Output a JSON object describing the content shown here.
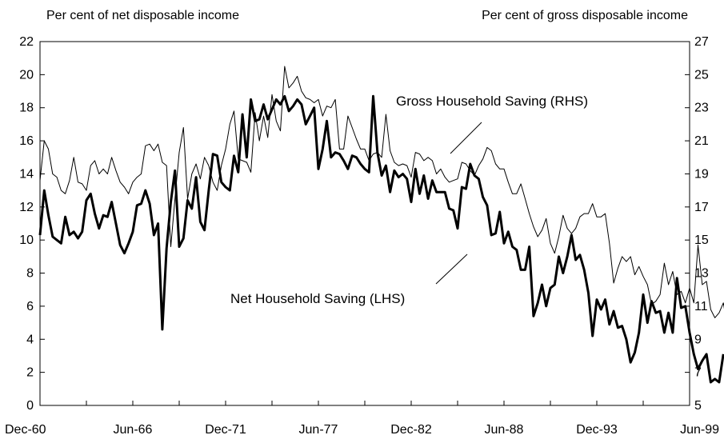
{
  "chart_data": {
    "type": "line",
    "title": "",
    "left_axis": {
      "label": "Per cent of net disposable income",
      "ylim": [
        0,
        22
      ],
      "ticks": [
        0,
        2,
        4,
        6,
        8,
        10,
        12,
        14,
        16,
        18,
        20,
        22
      ]
    },
    "right_axis": {
      "label": "Per cent of gross disposable income",
      "ylim": [
        5,
        27
      ],
      "ticks": [
        5,
        7,
        9,
        11,
        13,
        15,
        17,
        19,
        21,
        23,
        25,
        27
      ]
    },
    "x_axis": {
      "start": 1960.917,
      "end": 1999.417,
      "tick_labels": [
        "Dec-60",
        "Jun-66",
        "Dec-71",
        "Jun-77",
        "Dec-82",
        "Jun-88",
        "Dec-93",
        "Jun-99"
      ],
      "tick_positions": [
        1960.917,
        1966.417,
        1971.917,
        1977.417,
        1982.917,
        1988.417,
        1993.917,
        1999.417
      ]
    },
    "grid": false,
    "annotations": {
      "gross": "Gross Household Saving (RHS)",
      "net": "Net Household Saving (LHS)"
    },
    "series": [
      {
        "key": "gross",
        "axis": "right",
        "stroke_width": 1,
        "color": "#000000",
        "x_start": 1960.917,
        "x_step": 0.25,
        "values": [
          18.6,
          21,
          20.5,
          19,
          18.8,
          18,
          17.8,
          18.6,
          20,
          18.5,
          18.4,
          18,
          19.5,
          19.8,
          19,
          19.3,
          19,
          20,
          19.2,
          18.5,
          18.2,
          17.8,
          18.5,
          18.8,
          19,
          20.7,
          20.8,
          20.4,
          20.8,
          19.7,
          19.5,
          14.6,
          17.5,
          20.3,
          21.8,
          17.5,
          19,
          19.6,
          18.7,
          20,
          19.5,
          18.5,
          18,
          19.5,
          20.5,
          22,
          22.8,
          19.9,
          19.8,
          19.7,
          19.1,
          22.7,
          21,
          22.5,
          21.2,
          23.8,
          22.2,
          21.6,
          25.5,
          24.2,
          24.5,
          24.9,
          24,
          23.6,
          23.5,
          23.3,
          23.5,
          22.5,
          23.1,
          23,
          23.5,
          20.5,
          20.5,
          22.5,
          21.8,
          21.1,
          20.5,
          20.5,
          19.8,
          20.2,
          20.3,
          20,
          22.6,
          20.4,
          19.7,
          19.5,
          19.6,
          19.5,
          18.8,
          20.3,
          20.2,
          19.8,
          20,
          19.8,
          19,
          19.3,
          18.8,
          18.5,
          18.6,
          18.7,
          19.7,
          19.6,
          19.2,
          18.9,
          19.5,
          19.9,
          20.6,
          20.4,
          19.6,
          19.3,
          19.3,
          18.5,
          17.8,
          17.8,
          18.4,
          17.5,
          16.6,
          15.8,
          15.2,
          15.6,
          16.3,
          14.8,
          14.2,
          15.2,
          16.5,
          15.7,
          15.4,
          15.7,
          16.4,
          16.6,
          16.6,
          17.2,
          16.4,
          16.4,
          16.6,
          14.8,
          12.4,
          13.3,
          14,
          13.7,
          14,
          12.9,
          13.4,
          12.8,
          12.3,
          11.1,
          11.3,
          11.7,
          13.6,
          12.3,
          13.1,
          11.7,
          11.9,
          11.2,
          12.1,
          11.2,
          14.7,
          12.3,
          12.5,
          10.8,
          10.3,
          10.6,
          11.2,
          9.7,
          9.8,
          9.6,
          10.8
        ]
      },
      {
        "key": "net",
        "axis": "left",
        "stroke_width": 3,
        "color": "#000000",
        "x_start": 1960.917,
        "x_step": 0.25,
        "values": [
          10.3,
          13,
          11.5,
          10.2,
          10,
          9.8,
          11.4,
          10.3,
          10.5,
          10.1,
          10.5,
          12.4,
          12.8,
          11.6,
          10.7,
          11.5,
          11.4,
          12.3,
          11,
          9.7,
          9.2,
          9.8,
          10.5,
          12.1,
          12.2,
          13,
          12.2,
          10.3,
          11,
          4.6,
          9.5,
          12.3,
          14.2,
          9.6,
          10.1,
          12.4,
          11.9,
          13.8,
          11.1,
          10.6,
          13,
          15.2,
          15.1,
          13.5,
          13.2,
          13,
          15.1,
          14.1,
          17.6,
          15,
          18.5,
          17.2,
          17.3,
          18.2,
          17.3,
          17.9,
          18.5,
          18.2,
          18.7,
          17.8,
          18.1,
          18.5,
          18.2,
          17,
          17.5,
          18,
          14.3,
          15.5,
          17.2,
          15,
          15.3,
          15.2,
          14.8,
          14.3,
          15.1,
          15,
          14.6,
          14.3,
          14.1,
          18.7,
          15.3,
          13.9,
          14.5,
          12.9,
          14.2,
          13.8,
          14,
          13.7,
          12.3,
          14.3,
          12.8,
          13.9,
          12.5,
          13.6,
          12.9,
          12.9,
          12.9,
          11.9,
          11.8,
          10.7,
          13.2,
          13.1,
          14.6,
          13.9,
          13.7,
          12.6,
          12.1,
          10.3,
          10.4,
          11.7,
          9.8,
          10.5,
          9.6,
          9.4,
          8.2,
          8.2,
          9.6,
          5.4,
          6.2,
          7.3,
          6,
          7.1,
          7.3,
          9,
          8,
          9,
          10.3,
          8.8,
          9.1,
          8.2,
          6.8,
          4.2,
          6.4,
          5.8,
          6.4,
          4.9,
          5.7,
          4.7,
          4.8,
          4,
          2.6,
          3.2,
          4.4,
          6.7,
          5,
          6.3,
          5.6,
          5.7,
          4.4,
          5.6,
          4.4,
          7.7,
          5.9,
          6,
          4.4,
          3.1,
          2.2,
          2.7,
          3.1,
          1.4,
          1.6,
          1.4,
          3.1
        ]
      }
    ]
  }
}
